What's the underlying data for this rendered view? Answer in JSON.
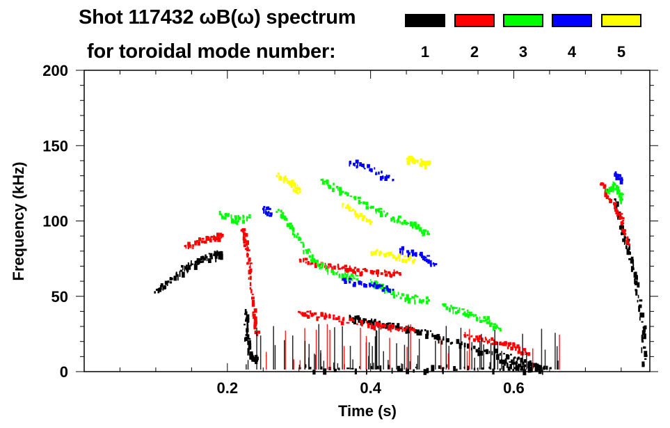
{
  "header": {
    "title_line1": "Shot 117432 ωB(ω) spectrum",
    "title_line2": "for toroidal mode number:"
  },
  "legend": [
    {
      "label": "1",
      "color": "#000000"
    },
    {
      "label": "2",
      "color": "#ff0000"
    },
    {
      "label": "3",
      "color": "#00ff00"
    },
    {
      "label": "4",
      "color": "#0000ff"
    },
    {
      "label": "5",
      "color": "#ffff00"
    }
  ],
  "chart_data": {
    "type": "scatter",
    "title": "Shot 117432 ωB(ω) spectrum for toroidal mode number: 1 2 3 4 5",
    "xlabel": "Time (s)",
    "ylabel": "Frequency (kHz)",
    "xlim": [
      0.0,
      0.79
    ],
    "ylim": [
      0,
      200
    ],
    "x_ticks": [
      0.2,
      0.4,
      0.6
    ],
    "x_tick_labels": [
      "0.2",
      "0.4",
      "0.6"
    ],
    "x_minor_step": 0.05,
    "y_ticks": [
      0,
      50,
      100,
      150,
      200
    ],
    "y_tick_labels": [
      "0",
      "50",
      "100",
      "150",
      "200"
    ],
    "y_minor_step": 10,
    "grid": false,
    "legend_position": "top-right",
    "series": [
      {
        "name": "n=1",
        "color": "#000000",
        "traces": [
          [
            [
              0.1,
              55
            ],
            [
              0.12,
              62
            ],
            [
              0.14,
              70
            ],
            [
              0.16,
              75
            ],
            [
              0.18,
              78
            ],
            [
              0.19,
              80
            ]
          ],
          [
            [
              0.225,
              40
            ],
            [
              0.225,
              25
            ],
            [
              0.23,
              12
            ],
            [
              0.24,
              8
            ]
          ],
          [
            [
              0.37,
              37
            ],
            [
              0.4,
              34
            ],
            [
              0.43,
              31
            ],
            [
              0.47,
              28
            ],
            [
              0.5,
              22
            ],
            [
              0.55,
              16
            ],
            [
              0.6,
              10
            ],
            [
              0.63,
              4
            ]
          ],
          [
            [
              0.74,
              115
            ],
            [
              0.75,
              95
            ],
            [
              0.76,
              80
            ],
            [
              0.77,
              60
            ],
            [
              0.78,
              30
            ],
            [
              0.78,
              5
            ]
          ],
          [
            [
              0.58,
              8
            ],
            [
              0.6,
              6
            ],
            [
              0.62,
              5
            ],
            [
              0.64,
              3
            ]
          ],
          [
            [
              0.3,
              3
            ],
            [
              0.4,
              3
            ],
            [
              0.5,
              3
            ],
            [
              0.6,
              3
            ],
            [
              0.65,
              3
            ]
          ]
        ]
      },
      {
        "name": "n=2",
        "color": "#ff0000",
        "traces": [
          [
            [
              0.14,
              84
            ],
            [
              0.16,
              88
            ],
            [
              0.18,
              90
            ],
            [
              0.19,
              91
            ]
          ],
          [
            [
              0.22,
              95
            ],
            [
              0.225,
              85
            ],
            [
              0.23,
              70
            ],
            [
              0.235,
              40
            ],
            [
              0.24,
              25
            ]
          ],
          [
            [
              0.3,
              40
            ],
            [
              0.33,
              38
            ],
            [
              0.36,
              35
            ],
            [
              0.4,
              32
            ],
            [
              0.43,
              30
            ],
            [
              0.46,
              28
            ]
          ],
          [
            [
              0.3,
              75
            ],
            [
              0.33,
              72
            ],
            [
              0.36,
              70
            ],
            [
              0.38,
              68
            ],
            [
              0.42,
              67
            ],
            [
              0.44,
              65
            ]
          ],
          [
            [
              0.53,
              25
            ],
            [
              0.56,
              22
            ],
            [
              0.58,
              20
            ],
            [
              0.6,
              17
            ],
            [
              0.62,
              12
            ]
          ],
          [
            [
              0.72,
              125
            ],
            [
              0.74,
              110
            ],
            [
              0.75,
              100
            ],
            [
              0.76,
              85
            ]
          ]
        ]
      },
      {
        "name": "n=3",
        "color": "#00ff00",
        "traces": [
          [
            [
              0.19,
              105
            ],
            [
              0.21,
              102
            ],
            [
              0.23,
              103
            ]
          ],
          [
            [
              0.27,
              108
            ],
            [
              0.29,
              95
            ],
            [
              0.31,
              80
            ],
            [
              0.33,
              70
            ],
            [
              0.36,
              65
            ],
            [
              0.38,
              62
            ]
          ],
          [
            [
              0.33,
              128
            ],
            [
              0.36,
              120
            ],
            [
              0.4,
              110
            ],
            [
              0.43,
              103
            ],
            [
              0.46,
              98
            ],
            [
              0.48,
              92
            ]
          ],
          [
            [
              0.4,
              60
            ],
            [
              0.42,
              55
            ],
            [
              0.45,
              50
            ],
            [
              0.48,
              48
            ]
          ],
          [
            [
              0.5,
              45
            ],
            [
              0.53,
              40
            ],
            [
              0.56,
              35
            ],
            [
              0.58,
              28
            ]
          ],
          [
            [
              0.73,
              120
            ],
            [
              0.74,
              125
            ],
            [
              0.75,
              115
            ]
          ]
        ]
      },
      {
        "name": "n=4",
        "color": "#0000ff",
        "traces": [
          [
            [
              0.25,
              110
            ],
            [
              0.26,
              105
            ]
          ],
          [
            [
              0.37,
              140
            ],
            [
              0.4,
              135
            ],
            [
              0.43,
              128
            ]
          ],
          [
            [
              0.44,
              82
            ],
            [
              0.47,
              78
            ],
            [
              0.49,
              72
            ]
          ],
          [
            [
              0.36,
              62
            ],
            [
              0.4,
              58
            ],
            [
              0.43,
              55
            ]
          ],
          [
            [
              0.74,
              132
            ],
            [
              0.75,
              128
            ]
          ]
        ]
      },
      {
        "name": "n=5",
        "color": "#ffff00",
        "traces": [
          [
            [
              0.27,
              132
            ],
            [
              0.29,
              125
            ],
            [
              0.3,
              120
            ]
          ],
          [
            [
              0.45,
              142
            ],
            [
              0.47,
              140
            ],
            [
              0.48,
              138
            ]
          ],
          [
            [
              0.4,
              80
            ],
            [
              0.43,
              78
            ],
            [
              0.46,
              75
            ]
          ],
          [
            [
              0.36,
              112
            ],
            [
              0.38,
              105
            ],
            [
              0.4,
              100
            ]
          ]
        ]
      }
    ]
  }
}
